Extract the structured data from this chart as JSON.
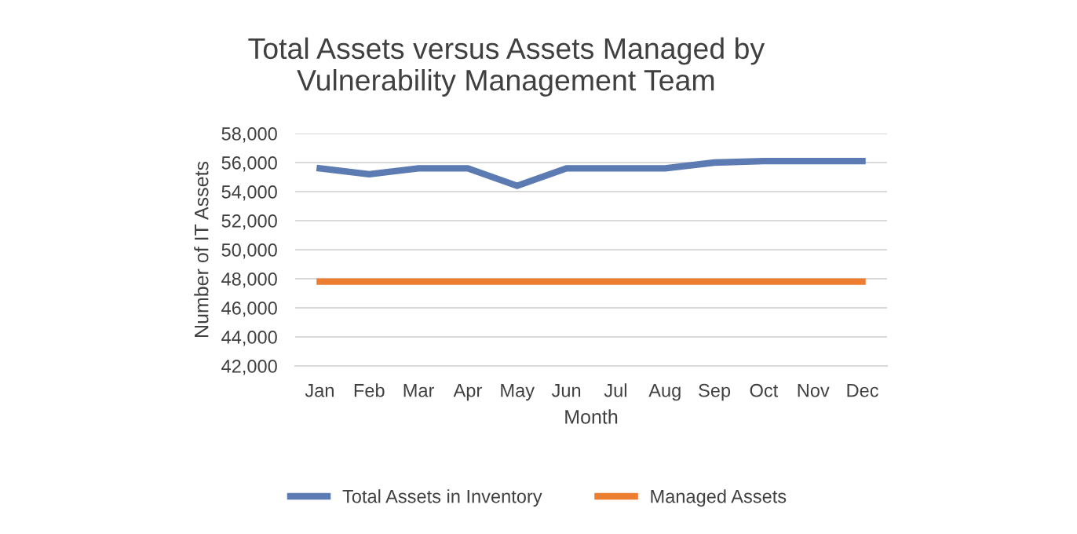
{
  "chart_data": {
    "type": "line",
    "title": "Total Assets versus Assets Managed by\nVulnerability Management Team",
    "xlabel": "Month",
    "ylabel": "Number of IT Assets",
    "categories": [
      "Jan",
      "Feb",
      "Mar",
      "Apr",
      "May",
      "Jun",
      "Jul",
      "Aug",
      "Sep",
      "Oct",
      "Nov",
      "Dec"
    ],
    "series": [
      {
        "name": "Total Assets in Inventory",
        "color": "#5b7bb2",
        "values": [
          55600,
          55200,
          55600,
          55600,
          54400,
          55600,
          55600,
          55600,
          56000,
          56100,
          56100,
          56100
        ]
      },
      {
        "name": "Managed Assets",
        "color": "#ed7d31",
        "values": [
          47800,
          47800,
          47800,
          47800,
          47800,
          47800,
          47800,
          47800,
          47800,
          47800,
          47800,
          47800
        ]
      }
    ],
    "ylim": [
      42000,
      58000
    ],
    "yticks": [
      {
        "value": 42000,
        "label": "42,000"
      },
      {
        "value": 44000,
        "label": "44,000"
      },
      {
        "value": 46000,
        "label": "46,000"
      },
      {
        "value": 48000,
        "label": "48,000"
      },
      {
        "value": 50000,
        "label": "50,000"
      },
      {
        "value": 52000,
        "label": "52,000"
      },
      {
        "value": 54000,
        "label": "54,000"
      },
      {
        "value": 56000,
        "label": "56,000"
      },
      {
        "value": 58000,
        "label": "58,000"
      }
    ],
    "grid": "y",
    "legend": "bottom",
    "marker": "none",
    "line_style": "solid"
  }
}
